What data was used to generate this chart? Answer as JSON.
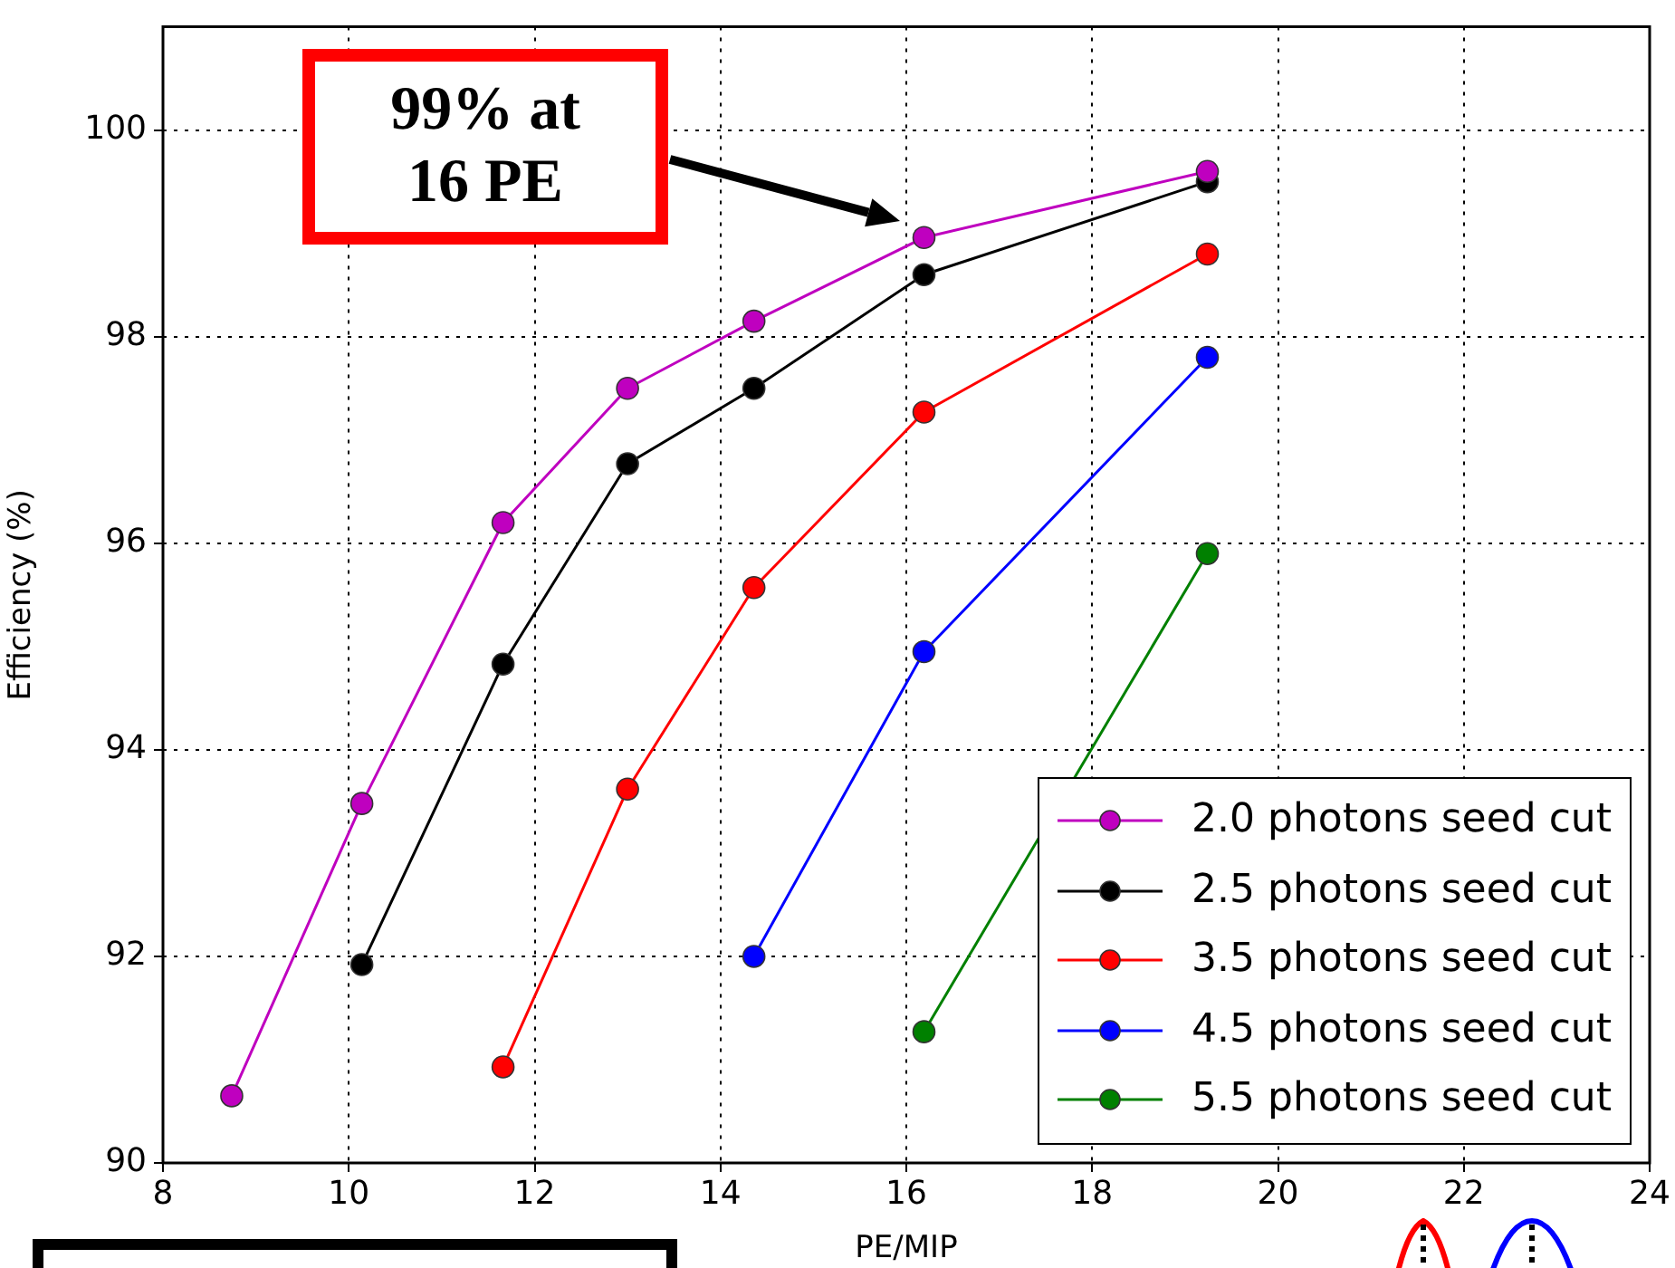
{
  "chart_data": {
    "type": "line",
    "xlabel": "PE/MIP",
    "ylabel": "Efficiency (%)",
    "x": [
      8.74,
      10.14,
      11.66,
      13.0,
      14.36,
      16.19,
      19.24
    ],
    "series": [
      {
        "name": "2.0 photons seed cut",
        "color": "#bf00bf",
        "values": [
          90.65,
          93.48,
          96.2,
          97.5,
          98.15,
          98.96,
          99.6
        ]
      },
      {
        "name": "2.5 photons seed cut",
        "color": "#000000",
        "values": [
          null,
          91.92,
          94.83,
          96.77,
          97.5,
          98.6,
          99.5
        ]
      },
      {
        "name": "3.5 photons seed cut",
        "color": "#ff0000",
        "values": [
          null,
          null,
          90.93,
          93.62,
          95.57,
          97.27,
          98.8
        ]
      },
      {
        "name": "4.5 photons seed cut",
        "color": "#0000ff",
        "values": [
          null,
          null,
          null,
          null,
          92.0,
          94.95,
          97.8
        ]
      },
      {
        "name": "5.5 photons seed cut",
        "color": "#008000",
        "values": [
          null,
          null,
          null,
          null,
          null,
          91.27,
          95.9
        ]
      }
    ],
    "xlim": [
      8,
      24
    ],
    "xticks": [
      8,
      10,
      12,
      14,
      16,
      18,
      20,
      22,
      24
    ],
    "ylim": [
      90,
      101
    ],
    "yticks": [
      90,
      92,
      94,
      96,
      98,
      100
    ],
    "grid": true,
    "legend": "bottom right",
    "marker": "circle",
    "line_style": "solid",
    "annotations": [
      "99% at\n16 PE"
    ]
  }
}
